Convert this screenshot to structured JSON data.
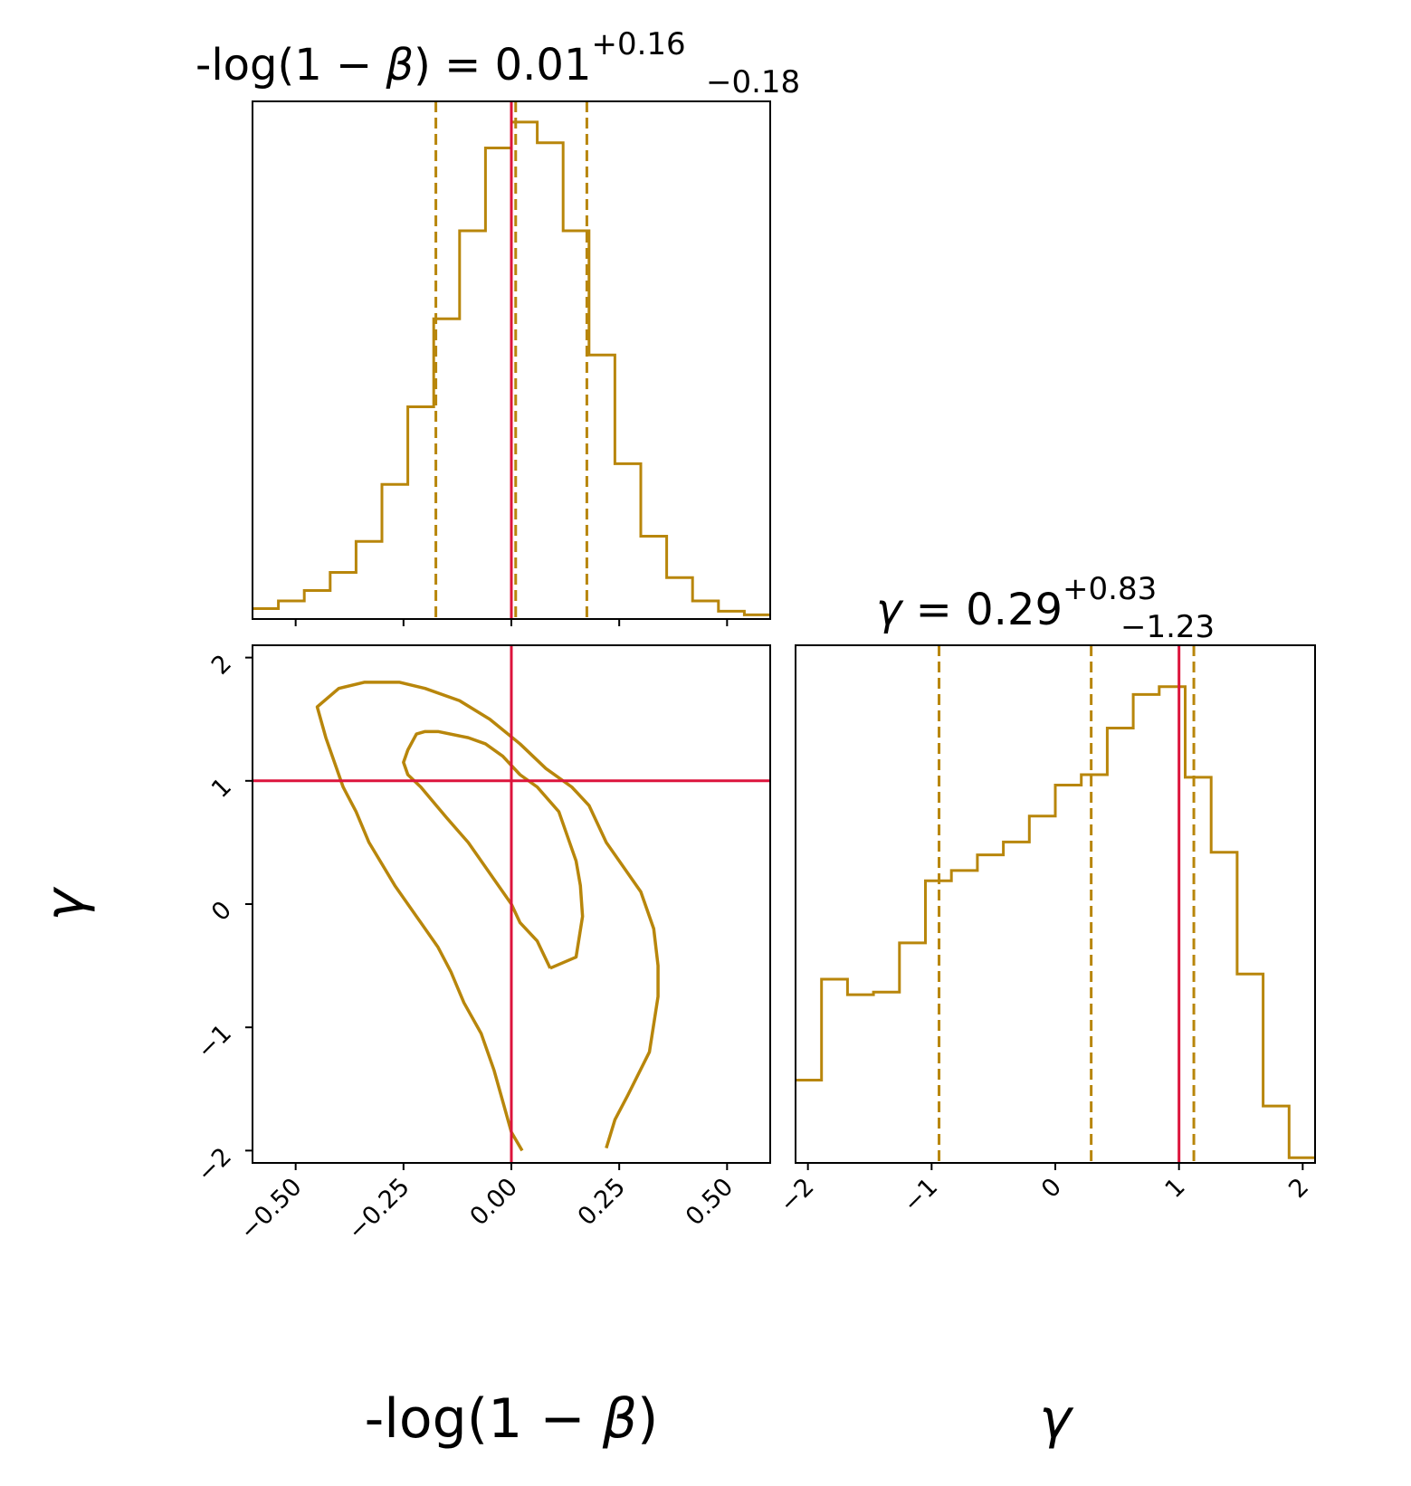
{
  "chart_data": [
    {
      "type": "histogram",
      "panel": "marginal-x",
      "title": {
        "prefix": "-log(1 − ",
        "symbol": "β",
        "suffix": ") = 0.01",
        "sup": "+0.16",
        "sub": "−0.18"
      },
      "xlim": [
        -0.6,
        0.6
      ],
      "bin_edges": [
        -0.6,
        -0.54,
        -0.48,
        -0.42,
        -0.36,
        -0.3,
        -0.24,
        -0.18,
        -0.12,
        -0.06,
        0.0,
        0.06,
        0.12,
        0.18,
        0.24,
        0.3,
        0.36,
        0.42,
        0.48,
        0.54,
        0.6
      ],
      "counts": [
        0.02,
        0.035,
        0.055,
        0.09,
        0.15,
        0.26,
        0.41,
        0.58,
        0.75,
        0.91,
        0.96,
        0.92,
        0.75,
        0.51,
        0.3,
        0.16,
        0.08,
        0.035,
        0.015,
        0.008
      ],
      "quantile_lines": [
        -0.175,
        0.01,
        0.175
      ],
      "truth": 0.0,
      "colors": {
        "hist": "#b8860b",
        "truth": "#dc143c"
      }
    },
    {
      "type": "contour",
      "panel": "joint",
      "xlim": [
        -0.6,
        0.6
      ],
      "ylim": [
        -2.1,
        2.1
      ],
      "xticks": [
        "−0.50",
        "−0.25",
        "0.00",
        "0.25",
        "0.50"
      ],
      "xtick_values": [
        -0.5,
        -0.25,
        0.0,
        0.25,
        0.5
      ],
      "yticks": [
        "2",
        "1",
        "0",
        "−1",
        "−2"
      ],
      "ytick_values": [
        2,
        1,
        0,
        -1,
        -2
      ],
      "xlabel": {
        "prefix": "-log(1 − ",
        "symbol": "β",
        "suffix": ")"
      },
      "ylabel": "γ",
      "contours": [
        {
          "level": "outer",
          "x": [
            0.025,
            0.0,
            -0.02,
            -0.04,
            -0.07,
            -0.11,
            -0.14,
            -0.17,
            -0.21,
            -0.27,
            -0.33,
            -0.36,
            -0.39,
            -0.43,
            -0.45,
            -0.4,
            -0.34,
            -0.26,
            -0.2,
            -0.12,
            -0.05,
            0.02,
            0.08,
            0.14,
            0.18,
            0.22,
            0.26,
            0.3,
            0.33,
            0.34,
            0.34,
            0.32,
            0.27,
            0.24,
            0.22
          ],
          "y": [
            -2.0,
            -1.85,
            -1.6,
            -1.35,
            -1.05,
            -0.8,
            -0.55,
            -0.35,
            -0.15,
            0.15,
            0.5,
            0.75,
            0.95,
            1.35,
            1.6,
            1.75,
            1.8,
            1.8,
            1.75,
            1.65,
            1.5,
            1.3,
            1.1,
            0.95,
            0.8,
            0.5,
            0.3,
            0.1,
            -0.2,
            -0.5,
            -0.75,
            -1.2,
            -1.55,
            -1.75,
            -1.98
          ]
        },
        {
          "level": "inner",
          "x": [
            0.09,
            0.15,
            0.165,
            0.16,
            0.15,
            0.13,
            0.11,
            0.06,
            0.02,
            -0.02,
            -0.06,
            -0.1,
            -0.17,
            -0.2,
            -0.22,
            -0.24,
            -0.25,
            -0.24,
            -0.21,
            -0.15,
            -0.1,
            -0.04,
            0.0,
            0.02,
            0.06,
            0.09
          ],
          "y": [
            -0.52,
            -0.43,
            -0.1,
            0.15,
            0.35,
            0.55,
            0.75,
            0.95,
            1.05,
            1.2,
            1.3,
            1.35,
            1.4,
            1.4,
            1.38,
            1.25,
            1.15,
            1.05,
            0.95,
            0.7,
            0.5,
            0.2,
            0.0,
            -0.15,
            -0.3,
            -0.52
          ]
        }
      ],
      "truth": {
        "x": 0.0,
        "y": 1.0
      },
      "colors": {
        "contour": "#b8860b",
        "truth": "#dc143c"
      }
    },
    {
      "type": "histogram",
      "panel": "marginal-y",
      "title": {
        "symbol": "γ",
        "suffix": " = 0.29",
        "sup": "+0.83",
        "sub": "−1.23"
      },
      "xlim": [
        -2.1,
        2.1
      ],
      "xticks": [
        "−2",
        "−1",
        "0",
        "1",
        "2"
      ],
      "xtick_values": [
        -2,
        -1,
        0,
        1,
        2
      ],
      "xlabel": "γ",
      "bin_edges": [
        -2.1,
        -1.89,
        -1.68,
        -1.47,
        -1.26,
        -1.05,
        -0.84,
        -0.63,
        -0.42,
        -0.21,
        0.0,
        0.21,
        0.42,
        0.63,
        0.84,
        1.05,
        1.26,
        1.47,
        1.68,
        1.89,
        2.1
      ],
      "counts": [
        0.16,
        0.355,
        0.325,
        0.33,
        0.425,
        0.545,
        0.565,
        0.595,
        0.62,
        0.67,
        0.73,
        0.75,
        0.84,
        0.905,
        0.92,
        0.745,
        0.6,
        0.365,
        0.11,
        0.01
      ],
      "quantile_lines": [
        -0.94,
        0.29,
        1.12
      ],
      "truth": 1.0,
      "colors": {
        "hist": "#b8860b",
        "truth": "#dc143c"
      }
    }
  ]
}
